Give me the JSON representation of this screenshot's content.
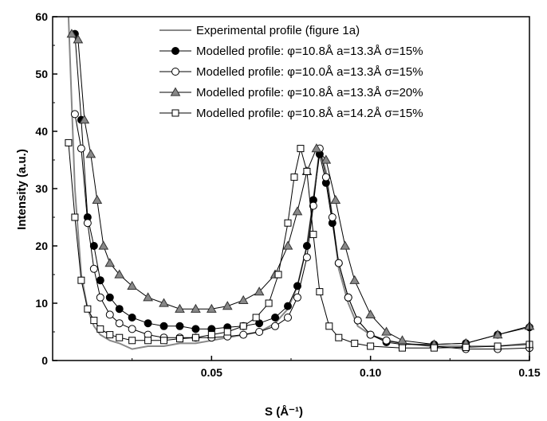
{
  "chart_data": {
    "type": "line",
    "xlabel": "S (Å⁻¹)",
    "ylabel": "Intensity (a.u.)",
    "xlim": [
      0.0,
      0.15
    ],
    "ylim": [
      0,
      60
    ],
    "xticks": [
      "0.05",
      "0.10",
      "0.15"
    ],
    "yticks": [
      "0",
      "10",
      "20",
      "30",
      "40",
      "50",
      "60"
    ],
    "grid": false,
    "legend_position": "top-right",
    "series": [
      {
        "name": "Experimental profile (figure 1a)",
        "marker": "none",
        "color": "#888888",
        "x": [
          0.005,
          0.007,
          0.009,
          0.011,
          0.013,
          0.015,
          0.018,
          0.021,
          0.025,
          0.03,
          0.035,
          0.04,
          0.045,
          0.05,
          0.055,
          0.06,
          0.065,
          0.07,
          0.074,
          0.077,
          0.08,
          0.082,
          0.084,
          0.086,
          0.088,
          0.09,
          0.093,
          0.096,
          0.1,
          0.105,
          0.11,
          0.12,
          0.13,
          0.14,
          0.15
        ],
        "y": [
          60,
          30,
          15,
          9,
          6,
          4.5,
          3.5,
          3,
          2,
          2.5,
          2.5,
          3,
          3,
          3.5,
          4,
          4.5,
          5,
          6.5,
          9,
          13,
          20,
          28,
          37,
          33,
          25,
          16,
          10,
          6,
          4.5,
          3.5,
          3,
          2.5,
          2.5,
          2.5,
          3
        ]
      },
      {
        "name": "Modelled profile: φ=10.8Å  a=13.3Å  σ=15%",
        "marker": "filled-circle",
        "color": "#000000",
        "x": [
          0.007,
          0.009,
          0.011,
          0.013,
          0.015,
          0.018,
          0.021,
          0.025,
          0.03,
          0.035,
          0.04,
          0.045,
          0.05,
          0.055,
          0.06,
          0.065,
          0.07,
          0.074,
          0.077,
          0.08,
          0.082,
          0.084,
          0.086,
          0.088,
          0.09,
          0.093,
          0.096,
          0.1,
          0.105,
          0.11,
          0.12,
          0.13,
          0.14,
          0.15
        ],
        "y": [
          57,
          42,
          25,
          20,
          14,
          11,
          9,
          7.5,
          6.5,
          6,
          6,
          5.5,
          5.5,
          5.8,
          6,
          6.5,
          7.5,
          9.5,
          13,
          20,
          28,
          36,
          31,
          24,
          17,
          11,
          7,
          4.5,
          3.2,
          2.8,
          2.8,
          3,
          4.5,
          5.8
        ]
      },
      {
        "name": "Modelled profile: φ=10.0Å  a=13.3Å  σ=15%",
        "marker": "open-circle",
        "color": "#000000",
        "x": [
          0.007,
          0.009,
          0.011,
          0.013,
          0.015,
          0.018,
          0.021,
          0.025,
          0.03,
          0.035,
          0.04,
          0.045,
          0.05,
          0.055,
          0.06,
          0.065,
          0.07,
          0.074,
          0.077,
          0.08,
          0.082,
          0.084,
          0.086,
          0.088,
          0.09,
          0.093,
          0.096,
          0.1,
          0.105,
          0.11,
          0.12,
          0.13,
          0.14,
          0.15
        ],
        "y": [
          43,
          37,
          24,
          16,
          11,
          8,
          6.5,
          5.5,
          4.5,
          4,
          4,
          4,
          4,
          4.2,
          4.5,
          5,
          6,
          7.5,
          11,
          18,
          27,
          37,
          32,
          25,
          17,
          11,
          7,
          4.5,
          3.5,
          3,
          2.5,
          2,
          2,
          2.2
        ]
      },
      {
        "name": "Modelled profile: φ=10.8Å  a=13.3Å  σ=20%",
        "marker": "filled-triangle",
        "color": "#000000",
        "x": [
          0.006,
          0.008,
          0.01,
          0.012,
          0.014,
          0.016,
          0.018,
          0.021,
          0.025,
          0.03,
          0.035,
          0.04,
          0.045,
          0.05,
          0.055,
          0.06,
          0.065,
          0.07,
          0.074,
          0.077,
          0.08,
          0.083,
          0.086,
          0.089,
          0.092,
          0.095,
          0.1,
          0.105,
          0.11,
          0.12,
          0.13,
          0.14,
          0.15
        ],
        "y": [
          57,
          56,
          42,
          36,
          28,
          20,
          17,
          15,
          13,
          11,
          10,
          9,
          9,
          9,
          9.5,
          10.5,
          12,
          15,
          20,
          26,
          33,
          37,
          35,
          28,
          20,
          14,
          8,
          5,
          3.5,
          2.8,
          3,
          4.5,
          6
        ]
      },
      {
        "name": "Modelled profile: φ=10.8Å  a=14.2Å  σ=15%",
        "marker": "open-square",
        "color": "#000000",
        "x": [
          0.005,
          0.007,
          0.009,
          0.011,
          0.013,
          0.015,
          0.018,
          0.021,
          0.025,
          0.03,
          0.035,
          0.04,
          0.045,
          0.05,
          0.055,
          0.06,
          0.064,
          0.068,
          0.071,
          0.074,
          0.076,
          0.078,
          0.08,
          0.082,
          0.084,
          0.087,
          0.09,
          0.095,
          0.1,
          0.11,
          0.12,
          0.13,
          0.14,
          0.15
        ],
        "y": [
          38,
          25,
          14,
          9,
          7,
          5.5,
          4.5,
          4,
          3.5,
          3.5,
          3.5,
          3.8,
          4,
          4.5,
          5,
          6,
          7.5,
          10,
          15,
          24,
          32,
          37,
          33,
          22,
          12,
          6,
          4,
          3,
          2.5,
          2.2,
          2.2,
          2.3,
          2.5,
          2.8
        ]
      }
    ]
  }
}
